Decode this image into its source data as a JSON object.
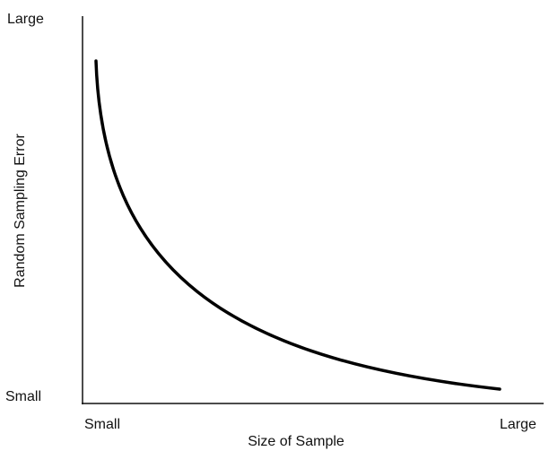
{
  "y_axis": {
    "title": "Random Sampling Error",
    "top_label": "Large",
    "bottom_label": "Small"
  },
  "x_axis": {
    "title": "Size of Sample",
    "left_label": "Small",
    "right_label": "Large"
  }
}
